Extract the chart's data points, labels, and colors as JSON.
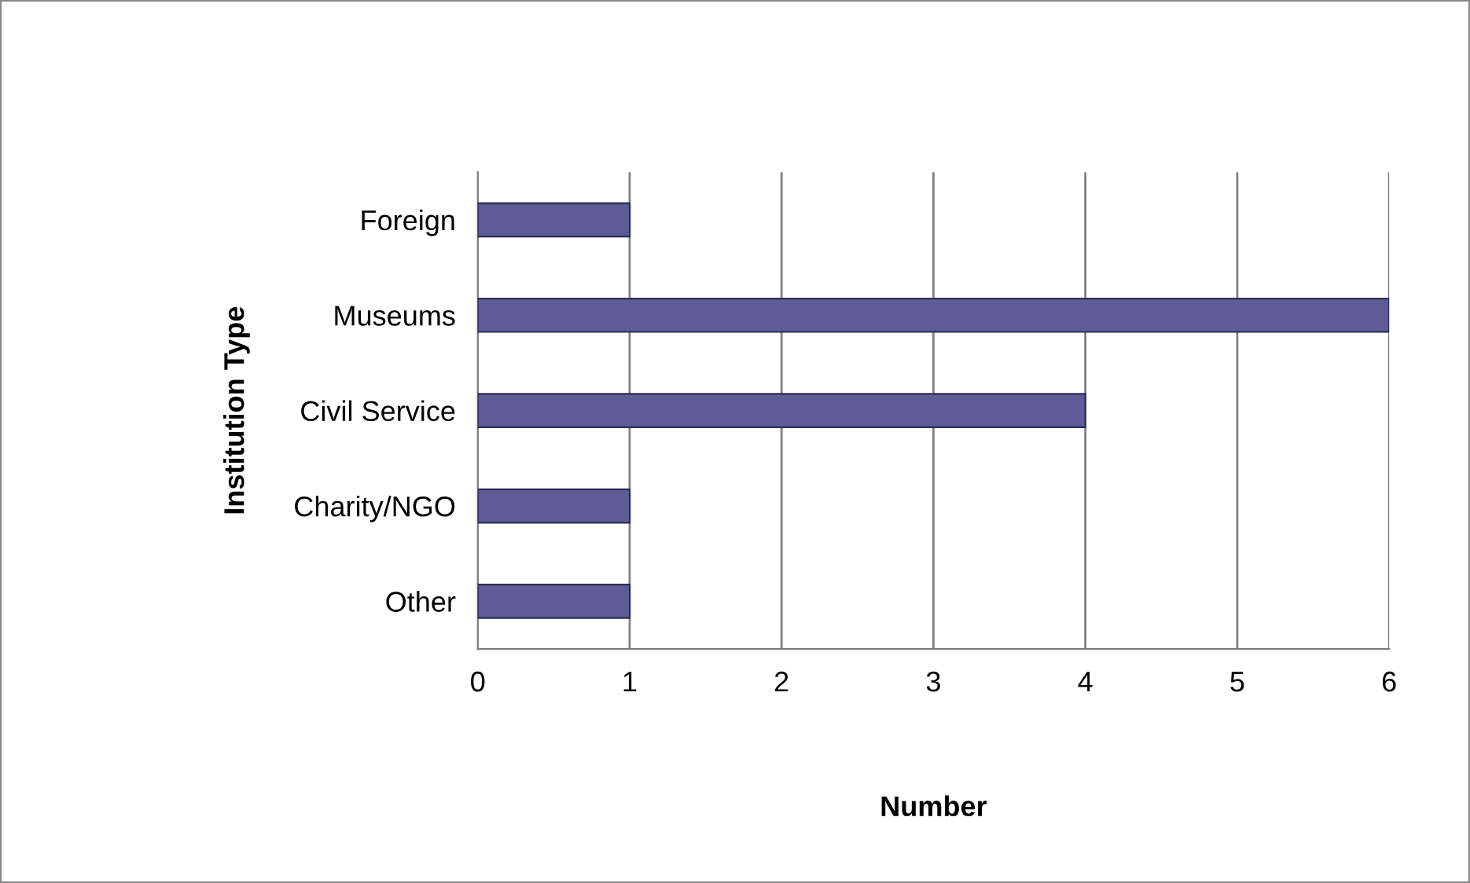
{
  "chart_data": {
    "type": "bar",
    "orientation": "horizontal",
    "categories": [
      "Foreign",
      "Museums",
      "Civil Service",
      "Charity/NGO",
      "Other"
    ],
    "values": [
      1,
      6,
      4,
      1,
      1
    ],
    "color": "#5d5c96",
    "xlabel": "Number",
    "ylabel": "Institution Type",
    "xlim": [
      0,
      6
    ],
    "xticks": [
      0,
      1,
      2,
      3,
      4,
      5,
      6
    ],
    "grid": "x",
    "legend": false
  }
}
